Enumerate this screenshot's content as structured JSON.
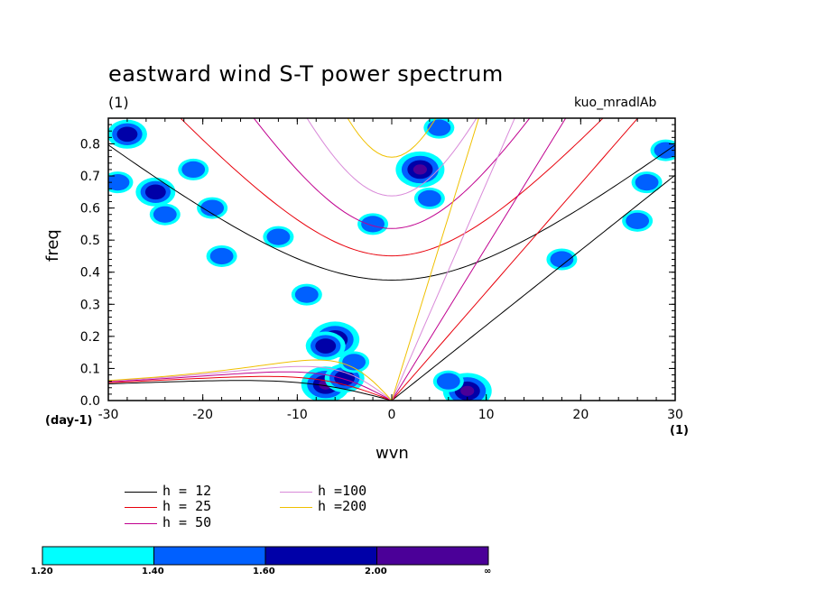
{
  "title": "eastward wind S-T power spectrum",
  "subtitle_left": "(1)",
  "subtitle_right": "kuo_mradlAb",
  "chart_data": {
    "type": "contour",
    "xlabel": "wvn",
    "ylabel": "freq",
    "x_unit": "(1)",
    "y_unit": "(day-1)",
    "xlim": [
      -30,
      30
    ],
    "ylim": [
      0.0,
      0.88
    ],
    "xticks": [
      "-30",
      "-20",
      "-10",
      "0",
      "10",
      "20",
      "30"
    ],
    "yticks": [
      "0.0",
      "0.1",
      "0.2",
      "0.3",
      "0.4",
      "0.5",
      "0.6",
      "0.7",
      "0.8"
    ],
    "xtick_values": [
      -30,
      -20,
      -10,
      0,
      10,
      20,
      30
    ],
    "ytick_values": [
      0,
      0.1,
      0.2,
      0.3,
      0.4,
      0.5,
      0.6,
      0.7,
      0.8
    ],
    "dispersion_curves": [
      {
        "name": "h = 12",
        "h": 12,
        "color": "#000000"
      },
      {
        "name": "h = 25",
        "h": 25,
        "color": "#e8000b"
      },
      {
        "name": "h = 50",
        "h": 50,
        "color": "#c0008f"
      },
      {
        "name": "h =100",
        "h": 100,
        "color": "#d98ad9"
      },
      {
        "name": "h =200",
        "h": 200,
        "color": "#f0c000"
      }
    ],
    "colorbar": {
      "levels": [
        "1.20",
        "1.40",
        "1.60",
        "2.00",
        "∞"
      ],
      "colors": [
        "#00ffff",
        "#0060ff",
        "#0000a8",
        "#4b0098"
      ]
    },
    "contour_blobs": [
      {
        "x": -7,
        "y": 0.05,
        "level": 3
      },
      {
        "x": -6,
        "y": 0.19,
        "level": 3
      },
      {
        "x": -7,
        "y": 0.17,
        "level": 2
      },
      {
        "x": -9,
        "y": 0.33,
        "level": 1
      },
      {
        "x": -5,
        "y": 0.07,
        "level": 2
      },
      {
        "x": -4,
        "y": 0.12,
        "level": 1
      },
      {
        "x": 8,
        "y": 0.03,
        "level": 3
      },
      {
        "x": 6,
        "y": 0.06,
        "level": 1
      },
      {
        "x": 3,
        "y": 0.72,
        "level": 3
      },
      {
        "x": 4,
        "y": 0.63,
        "level": 1
      },
      {
        "x": -28,
        "y": 0.83,
        "level": 2
      },
      {
        "x": -25,
        "y": 0.65,
        "level": 2
      },
      {
        "x": -21,
        "y": 0.72,
        "level": 1
      },
      {
        "x": -19,
        "y": 0.6,
        "level": 1
      },
      {
        "x": -24,
        "y": 0.58,
        "level": 1
      },
      {
        "x": 5,
        "y": 0.85,
        "level": 1
      },
      {
        "x": -29,
        "y": 0.68,
        "level": 1
      },
      {
        "x": 26,
        "y": 0.56,
        "level": 1
      },
      {
        "x": 18,
        "y": 0.44,
        "level": 1
      },
      {
        "x": -12,
        "y": 0.51,
        "level": 1
      },
      {
        "x": -18,
        "y": 0.45,
        "level": 1
      },
      {
        "x": 27,
        "y": 0.68,
        "level": 1
      },
      {
        "x": 29,
        "y": 0.78,
        "level": 1
      },
      {
        "x": -2,
        "y": 0.55,
        "level": 1
      }
    ]
  },
  "legend": {
    "items": [
      {
        "label": "h = 12",
        "color": "#000000"
      },
      {
        "label": "h = 25",
        "color": "#e8000b"
      },
      {
        "label": "h = 50",
        "color": "#c0008f"
      },
      {
        "label": "h =100",
        "color": "#d98ad9"
      },
      {
        "label": "h =200",
        "color": "#f0c000"
      }
    ]
  }
}
